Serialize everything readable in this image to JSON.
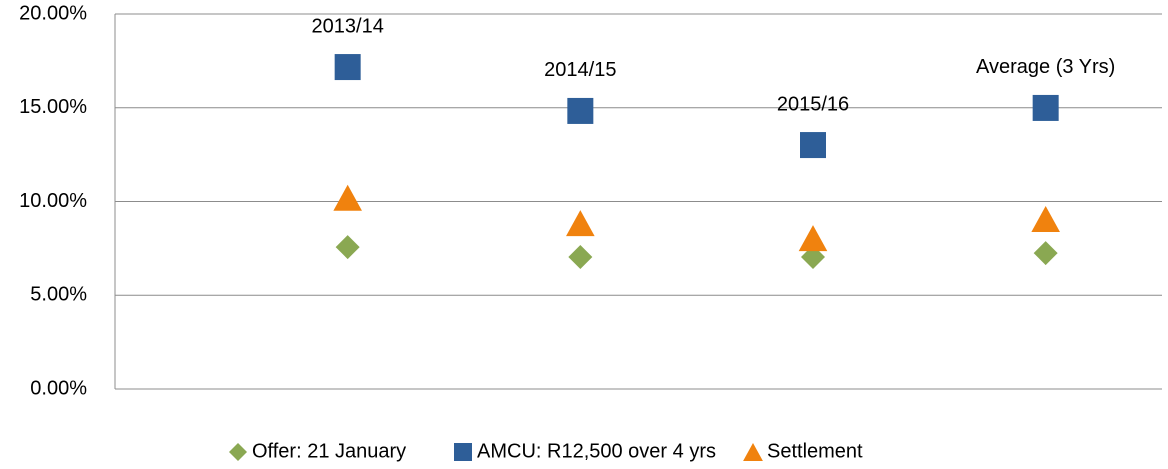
{
  "chart_data": {
    "type": "scatter",
    "categories": [
      "2013/14",
      "2014/15",
      "2015/16",
      "Average (3 Yrs)"
    ],
    "series": [
      {
        "name": "Offer: 21 January",
        "color": "#8aa852",
        "marker": "diamond",
        "values": [
          7.57,
          7.04,
          7.04,
          7.25
        ]
      },
      {
        "name": "AMCU: R12,500 over 4 yrs",
        "color": "#2e5e98",
        "marker": "square",
        "values": [
          17.17,
          14.83,
          13.01,
          14.99
        ]
      },
      {
        "name": "Settlement",
        "color": "#f0820e",
        "marker": "triangle",
        "values": [
          10.2,
          8.85,
          8.05,
          9.07
        ]
      }
    ],
    "ylim": [
      0,
      20
    ],
    "yticks": [
      {
        "value": 0,
        "label": "0.00%"
      },
      {
        "value": 5,
        "label": "5.00%"
      },
      {
        "value": 10,
        "label": "10.00%"
      },
      {
        "value": 15,
        "label": "15.00%"
      },
      {
        "value": 20,
        "label": "20.00%"
      }
    ],
    "grid": true,
    "legend": "bottom"
  }
}
